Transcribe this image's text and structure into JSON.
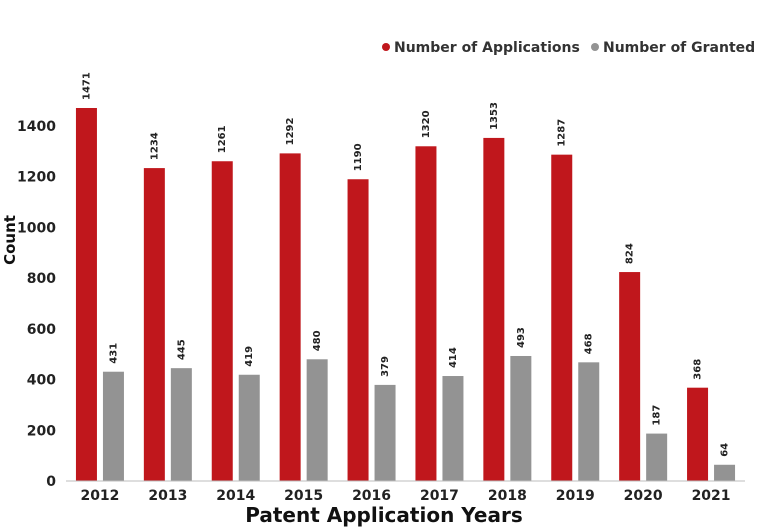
{
  "chart_data": {
    "type": "bar",
    "title": "",
    "xlabel": "Patent Application Years",
    "ylabel": "Count",
    "ylim": [
      0,
      1500
    ],
    "yticks": [
      0,
      200,
      400,
      600,
      800,
      1000,
      1200,
      1400
    ],
    "categories": [
      "2012",
      "2013",
      "2014",
      "2015",
      "2016",
      "2017",
      "2018",
      "2019",
      "2020",
      "2021"
    ],
    "series": [
      {
        "name": "Number of Applications",
        "color": "#c0171c",
        "values": [
          1471,
          1234,
          1261,
          1292,
          1190,
          1320,
          1353,
          1287,
          824,
          368
        ]
      },
      {
        "name": "Number of Granted",
        "color": "#939393",
        "values": [
          431,
          445,
          419,
          480,
          379,
          414,
          493,
          468,
          187,
          64
        ]
      }
    ],
    "legend_position": "top-right",
    "grid": false
  }
}
